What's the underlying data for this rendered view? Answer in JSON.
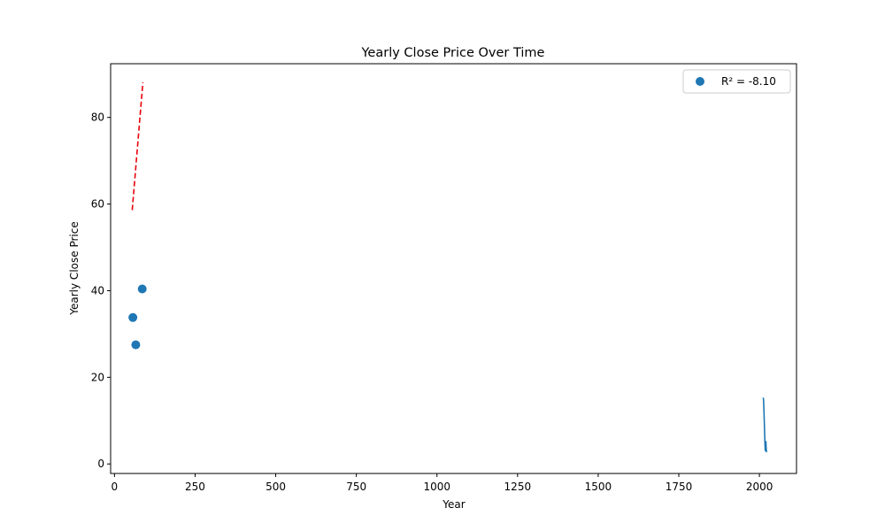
{
  "chart_data": {
    "type": "scatter",
    "title": "Yearly Close Price Over Time",
    "xlabel": "Year",
    "ylabel": "Yearly Close Price",
    "xlim": [
      -12,
      2115
    ],
    "ylim": [
      -2.2,
      92.4
    ],
    "xticks": [
      0,
      250,
      500,
      750,
      1000,
      1250,
      1500,
      1750,
      2000
    ],
    "yticks": [
      0,
      20,
      40,
      60,
      80
    ],
    "grid": false,
    "legend": {
      "placement": "top-right",
      "label": "R² = -8.10"
    },
    "scatter_points": [
      {
        "x": 57,
        "y": 33.8
      },
      {
        "x": 66,
        "y": 27.5
      },
      {
        "x": 86,
        "y": 40.4
      }
    ],
    "line_series": [
      {
        "x": 2012,
        "y": 15.3
      },
      {
        "x": 2013,
        "y": 14.5
      },
      {
        "x": 2014,
        "y": 12.5
      },
      {
        "x": 2015,
        "y": 10.0
      },
      {
        "x": 2016,
        "y": 7.5
      },
      {
        "x": 2017,
        "y": 5.0
      },
      {
        "x": 2018,
        "y": 3.2
      },
      {
        "x": 2019,
        "y": 3.0
      },
      {
        "x": 2020,
        "y": 5.3
      },
      {
        "x": 2021,
        "y": 3.6
      },
      {
        "x": 2022,
        "y": 2.7
      }
    ],
    "fit_line": {
      "x": [
        55,
        88
      ],
      "y": [
        58.6,
        88.1
      ]
    },
    "colors": {
      "points": "#1f77b4",
      "line": "#1f77b4",
      "fit": "#e8000b"
    }
  }
}
